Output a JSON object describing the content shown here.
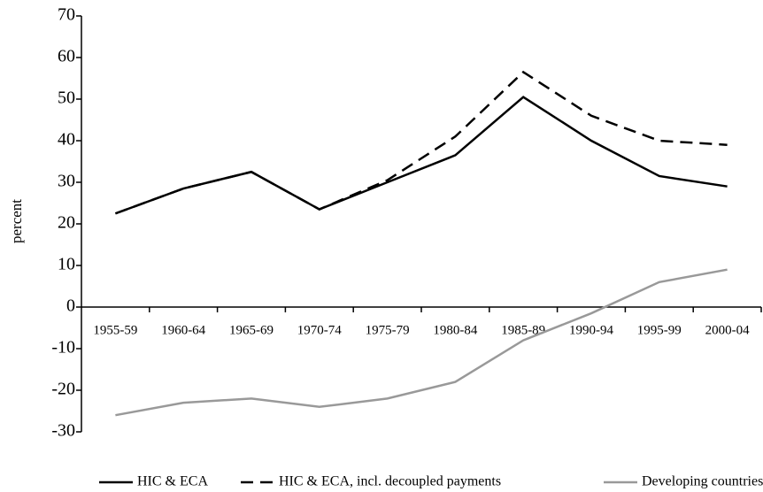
{
  "chart_data": {
    "type": "line",
    "y_label": "percent",
    "categories": [
      "1955-59",
      "1960-64",
      "1965-69",
      "1970-74",
      "1975-79",
      "1980-84",
      "1985-89",
      "1990-94",
      "1995-99",
      "2000-04"
    ],
    "series": [
      {
        "name": "HIC & ECA",
        "color": "#000000",
        "style": "solid",
        "values": [
          22.5,
          28.5,
          32.5,
          23.5,
          30,
          36.5,
          50.5,
          40,
          31.5,
          29
        ]
      },
      {
        "name": "HIC & ECA, incl. decoupled payments",
        "color": "#000000",
        "style": "dashed",
        "values": [
          22.5,
          28.5,
          32.5,
          23.5,
          30.5,
          41,
          56.5,
          46,
          40,
          39
        ]
      },
      {
        "name": "Developing countries",
        "color": "#999999",
        "style": "solid",
        "values": [
          -26,
          -23,
          -22,
          -24,
          -22,
          -18,
          -8,
          -1.5,
          6,
          9
        ]
      }
    ],
    "ylim": [
      -30,
      70
    ],
    "yticks": [
      -30,
      -20,
      -10,
      0,
      10,
      20,
      30,
      40,
      50,
      60,
      70
    ],
    "legend": "bottom"
  }
}
